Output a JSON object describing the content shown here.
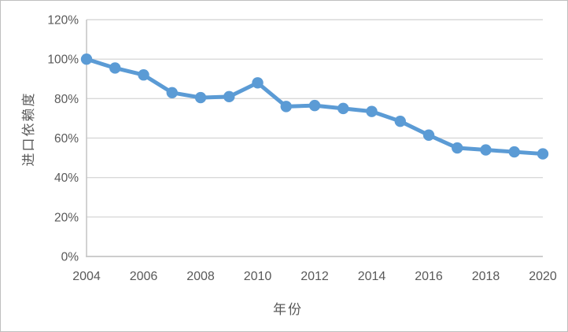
{
  "chart_data": {
    "type": "line",
    "x": [
      2004,
      2005,
      2006,
      2007,
      2008,
      2009,
      2010,
      2011,
      2012,
      2013,
      2014,
      2015,
      2016,
      2017,
      2018,
      2019,
      2020
    ],
    "series": [
      {
        "name": "进口依赖度",
        "values": [
          100,
          95.5,
          92,
          83,
          80.5,
          81,
          88,
          76,
          76.5,
          75,
          73.5,
          68.5,
          61.5,
          55,
          54,
          53,
          52
        ]
      }
    ],
    "title": "",
    "xlabel": "年份",
    "ylabel": "进口依赖度",
    "ylim": [
      0,
      120
    ],
    "ytick_values": [
      0,
      20,
      40,
      60,
      80,
      100,
      120
    ],
    "yticks": [
      "0%",
      "20%",
      "40%",
      "60%",
      "80%",
      "100%",
      "120%"
    ],
    "xticks": [
      "2004",
      "2006",
      "2008",
      "2010",
      "2012",
      "2014",
      "2016",
      "2018",
      "2020"
    ],
    "grid": "horizontal",
    "legend": "none",
    "marker": "circle"
  },
  "colors": {
    "line": "#5B9BD5",
    "grid": "#D9D9D9",
    "axis": "#C6C6C6",
    "text": "#595959",
    "border": "#BFBFBF",
    "background": "#FFFFFF"
  }
}
